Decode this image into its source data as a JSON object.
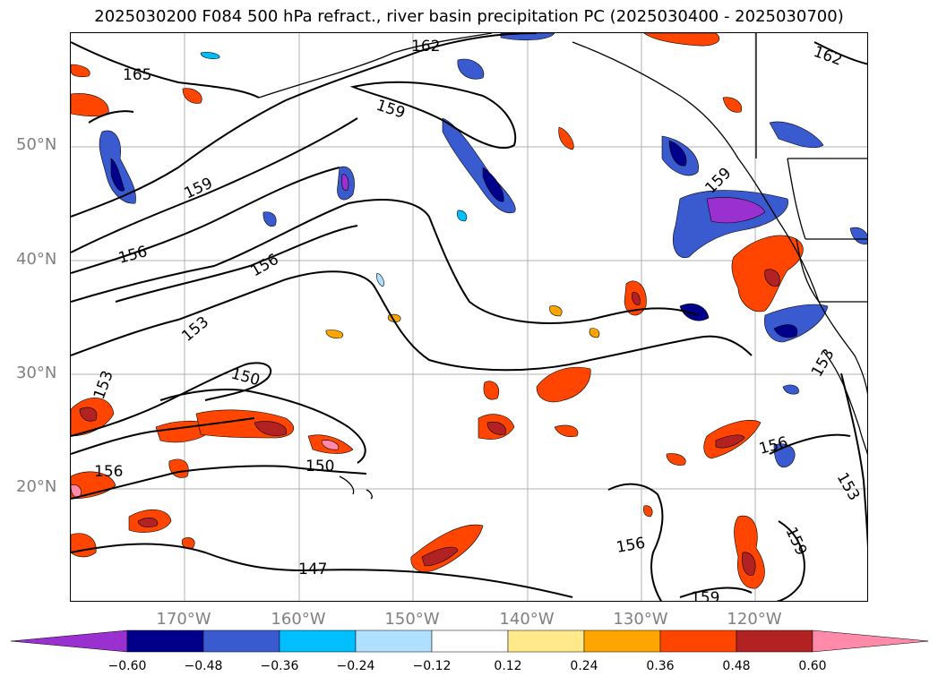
{
  "title": "2025030200 F084 500 hPa refract., river basin precipitation PC (2025030400 - 2025030700)",
  "lat_labels": [
    "50°N",
    "40°N",
    "30°N",
    "20°N"
  ],
  "lon_labels": [
    "170°W",
    "160°W",
    "150°W",
    "140°W",
    "130°W",
    "120°W"
  ],
  "colorbar": {
    "ticks": [
      "−0.60",
      "−0.48",
      "−0.36",
      "−0.24",
      "−0.12",
      "0.12",
      "0.24",
      "0.36",
      "0.48",
      "0.60"
    ],
    "colors": [
      "#9b30d0",
      "#00008b",
      "#3a5bd0",
      "#00bfff",
      "#b0e0ff",
      "#ffffff",
      "#ffe98a",
      "#ffa500",
      "#ff4500",
      "#b22222",
      "#ff8aaa"
    ]
  },
  "contour_labels": [
    "165",
    "162",
    "162",
    "159",
    "159",
    "159",
    "156",
    "156",
    "156",
    "156",
    "156",
    "153",
    "153",
    "153",
    "153",
    "150",
    "150",
    "147",
    "159",
    "159"
  ]
}
